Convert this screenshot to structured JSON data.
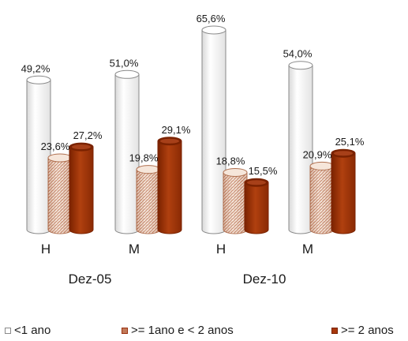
{
  "chart_data": {
    "type": "bar",
    "groups": [
      "Dez-05",
      "Dez-10"
    ],
    "categories": [
      "H",
      "M",
      "H",
      "M"
    ],
    "category_group": [
      0,
      0,
      1,
      1
    ],
    "series": [
      {
        "name": "<1 ano",
        "values": [
          49.2,
          51.0,
          65.6,
          54.0
        ],
        "labels": [
          "49,2%",
          "51,0%",
          "65,6%",
          "54,0%"
        ]
      },
      {
        "name": ">= 1ano e < 2 anos",
        "values": [
          23.6,
          19.8,
          18.8,
          20.9
        ],
        "labels": [
          "23,6%",
          "19,8%",
          "18,8%",
          "20,9%"
        ]
      },
      {
        "name": ">= 2 anos",
        "values": [
          27.2,
          29.1,
          15.5,
          25.1
        ],
        "labels": [
          "27,2%",
          "29,1%",
          "15,5%",
          "25,1%"
        ]
      }
    ],
    "ylim": [
      0,
      70
    ],
    "grid": false,
    "legend_position": "bottom",
    "colors": {
      "series_0_fill": "#ffffff",
      "series_0_edge": "#8a8a8a",
      "series_1_fill": "#f1dccd",
      "series_1_hatch": "#b86a48",
      "series_2_fill": "#a8380c",
      "series_2_dark": "#7a2200",
      "series_2_top": "#c4552a"
    }
  }
}
